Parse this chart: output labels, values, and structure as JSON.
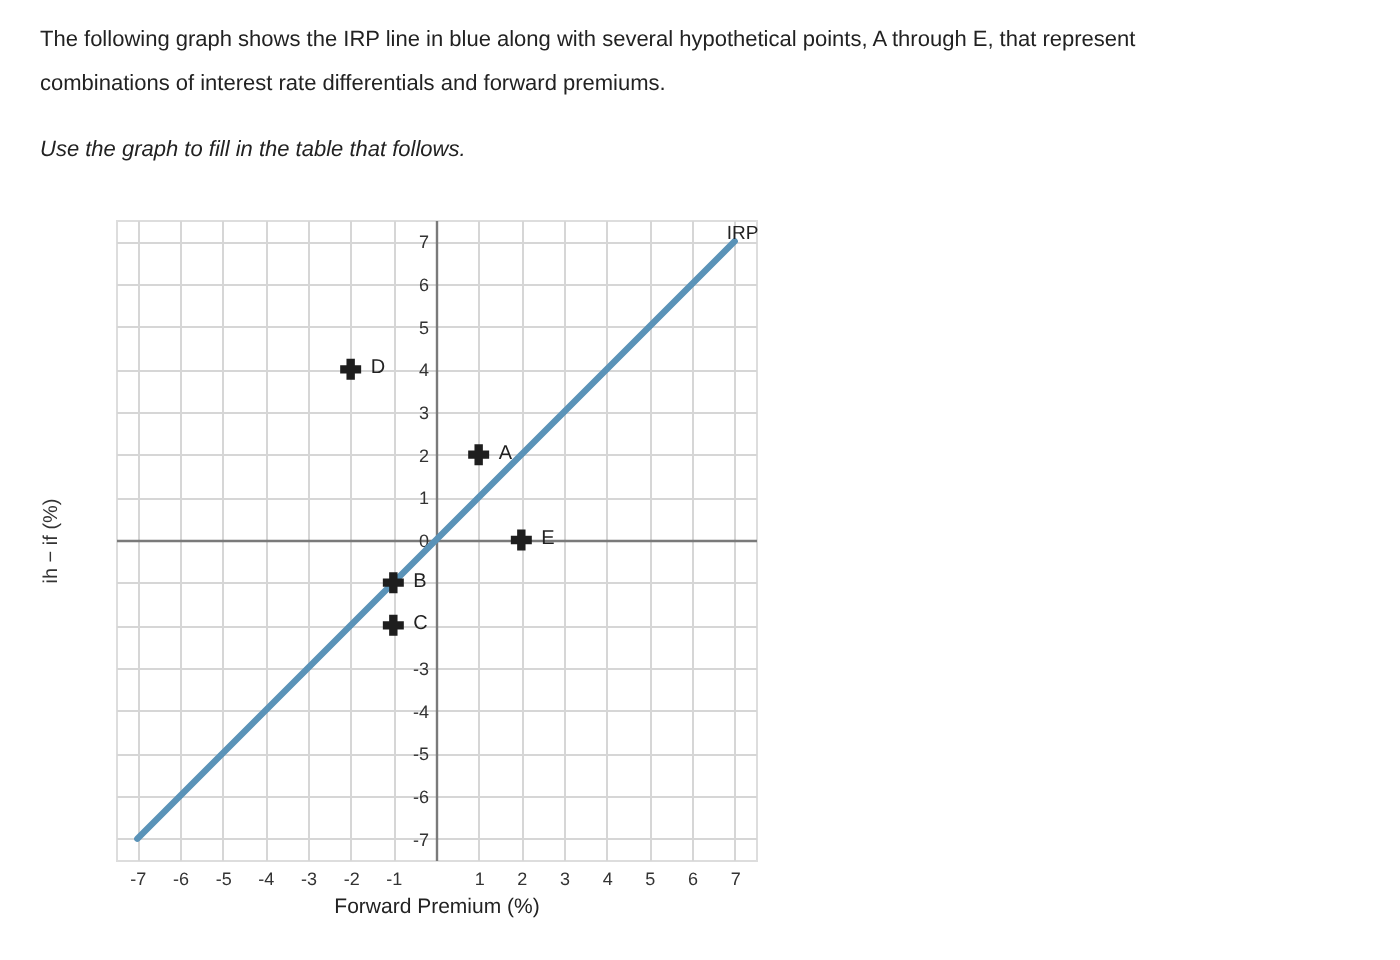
{
  "chart_data": {
    "type": "scatter",
    "title": "The following graph shows the IRP line in blue along with several hypothetical points, A through E, that represent combinations of interest rate differentials and forward premiums.",
    "subtitle": "Use the graph to fill in the table that follows.",
    "xlabel": "Forward Premium (%)",
    "ylabel": "ih − if (%)",
    "xlim": [
      -7.5,
      7.5
    ],
    "ylim": [
      -7.5,
      7.5
    ],
    "xticks": [
      -7,
      -6,
      -5,
      -4,
      -3,
      -2,
      -1,
      {
        "value": 0,
        "label": null
      },
      1,
      2,
      3,
      4,
      5,
      6,
      7
    ],
    "yticks": [
      -7,
      -6,
      -5,
      -4,
      -3,
      {
        "value": -2,
        "label": null
      },
      {
        "value": -1,
        "label": null
      },
      0,
      1,
      2,
      3,
      4,
      5,
      6,
      7
    ],
    "grid": true,
    "series": [
      {
        "name": "IRP",
        "type": "line",
        "color": "#5a93b8",
        "x": [
          -7,
          7
        ],
        "values": [
          -7,
          7
        ]
      },
      {
        "marker": "cross",
        "color": "#1e1e1e",
        "x": [
          1,
          -1,
          -1,
          -2,
          2
        ],
        "values": [
          2,
          -1,
          -2,
          4,
          0
        ]
      }
    ],
    "annotations": [
      {
        "text": "A",
        "x": 1,
        "y": 2
      },
      {
        "text": "B",
        "x": -1,
        "y": -1
      },
      {
        "text": "C",
        "x": -1,
        "y": -2
      },
      {
        "text": "D",
        "x": -2,
        "y": 4
      },
      {
        "text": "E",
        "x": 2,
        "y": 0
      }
    ]
  }
}
